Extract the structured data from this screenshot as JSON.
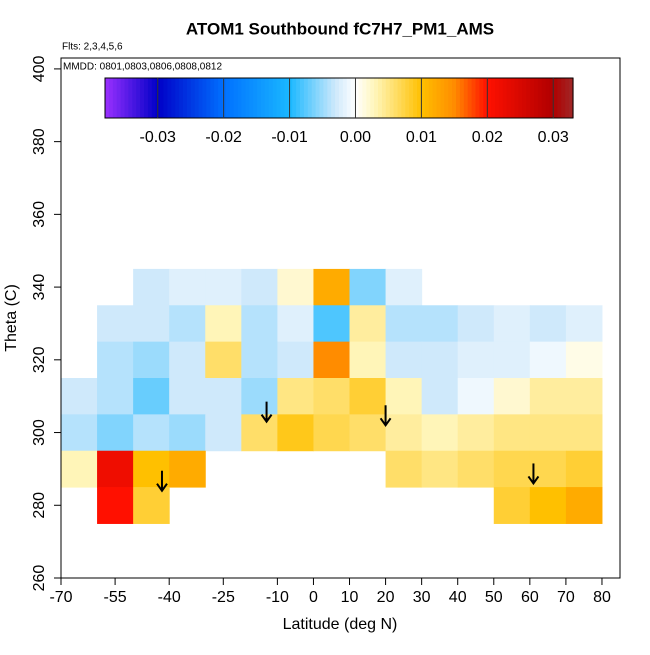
{
  "chart_data": {
    "type": "heatmap",
    "title": "ATOM1 Southbound fC7H7_PM1_AMS",
    "subtitle": "Flts: 2,3,4,5,6",
    "annotation": "MMDD: 0801,0803,0806,0808,0812",
    "x_label": "Latitude (deg N)",
    "y_label": "Theta (C)",
    "xlim": [
      -70,
      85
    ],
    "ylim": [
      260,
      403
    ],
    "xticks": [
      -70,
      -55,
      -40,
      -25,
      -10,
      0,
      10,
      20,
      30,
      40,
      50,
      60,
      70,
      80
    ],
    "yticks": [
      260,
      280,
      300,
      320,
      340,
      360,
      380,
      400
    ],
    "x": [
      -65,
      -55,
      -45,
      -35,
      -25,
      -15,
      -5,
      5,
      15,
      25,
      35,
      45,
      55,
      65,
      75
    ],
    "y": [
      340,
      330,
      320,
      310,
      300,
      290,
      280
    ],
    "values": [
      [
        null,
        null,
        -0.003,
        -0.002,
        -0.002,
        -0.003,
        0.002,
        0.012,
        -0.006,
        -0.002,
        null,
        null,
        null,
        null,
        null
      ],
      [
        null,
        -0.003,
        -0.003,
        -0.004,
        0.003,
        -0.004,
        -0.002,
        -0.008,
        0.004,
        -0.004,
        -0.004,
        -0.003,
        -0.002,
        -0.003,
        -0.002
      ],
      [
        null,
        -0.004,
        -0.005,
        -0.003,
        0.006,
        -0.004,
        -0.003,
        0.015,
        0.003,
        -0.003,
        -0.003,
        -0.002,
        -0.002,
        -0.001,
        0.001
      ],
      [
        -0.003,
        -0.004,
        -0.007,
        -0.003,
        -0.003,
        -0.005,
        0.005,
        0.006,
        0.008,
        0.003,
        -0.003,
        -0.001,
        0.002,
        0.004,
        0.004
      ],
      [
        -0.004,
        -0.006,
        -0.004,
        -0.005,
        -0.003,
        0.006,
        0.009,
        0.007,
        0.006,
        0.004,
        0.003,
        0.004,
        0.005,
        0.005,
        0.005
      ],
      [
        0.003,
        0.022,
        0.01,
        0.012,
        null,
        null,
        null,
        null,
        null,
        0.006,
        0.005,
        0.006,
        0.007,
        0.007,
        0.008
      ],
      [
        null,
        0.02,
        0.008,
        null,
        null,
        null,
        null,
        null,
        null,
        null,
        null,
        null,
        0.008,
        0.01,
        0.012
      ]
    ],
    "markers": [
      {
        "x": -42,
        "y": 284
      },
      {
        "x": -13,
        "y": 303
      },
      {
        "x": 20,
        "y": 302
      },
      {
        "x": 61,
        "y": 286
      }
    ],
    "colorbar": {
      "lim": [
        -0.038,
        0.033
      ],
      "ticks": [
        -0.03,
        -0.02,
        -0.01,
        {
          "value": 0,
          "label": "0.00"
        },
        0.01,
        0.02,
        0.03
      ],
      "stops": [
        {
          "value": -0.038,
          "color": "#9b30ff"
        },
        {
          "value": -0.03,
          "color": "#0000c8"
        },
        {
          "value": -0.02,
          "color": "#0070ff"
        },
        {
          "value": -0.01,
          "color": "#1ab8ff"
        },
        {
          "value": -0.003,
          "color": "#cfe9fb"
        },
        {
          "value": 0,
          "color": "#ffffff"
        },
        {
          "value": 0.003,
          "color": "#fff5b8"
        },
        {
          "value": 0.01,
          "color": "#ffc000"
        },
        {
          "value": 0.015,
          "color": "#ff8c00"
        },
        {
          "value": 0.02,
          "color": "#ff1000"
        },
        {
          "value": 0.03,
          "color": "#b00000"
        },
        {
          "value": 0.033,
          "color": "#a02828"
        }
      ]
    }
  }
}
